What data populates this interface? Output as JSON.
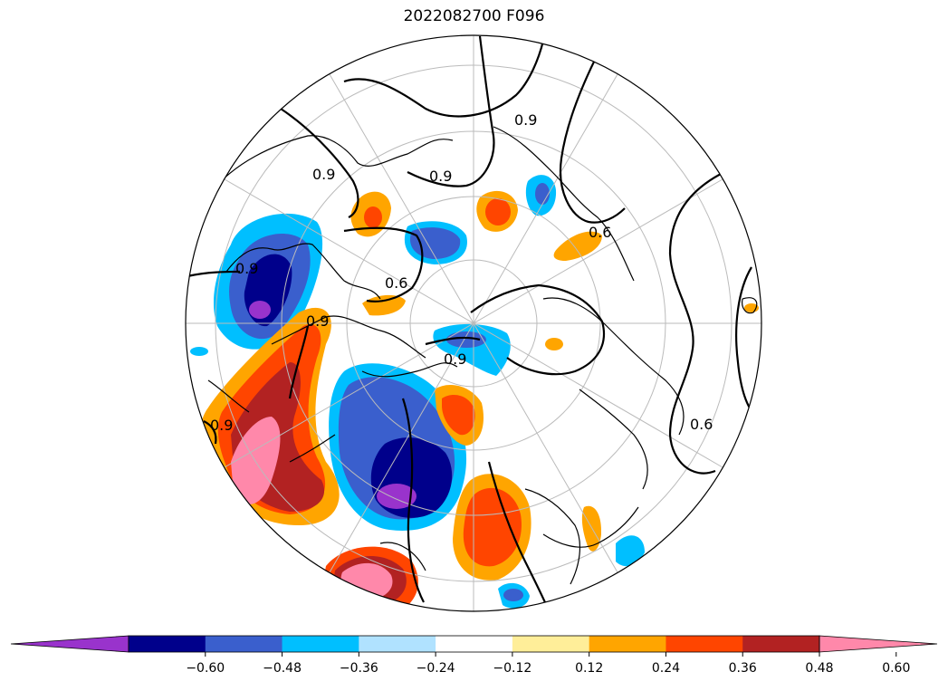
{
  "title": "2022082700 F096",
  "contour_labels": [
    "0.9",
    "0.9",
    "0.6",
    "0.9",
    "0.9",
    "0.6",
    "0.6",
    "0.9",
    "0.9",
    "0.9"
  ],
  "colorbar": {
    "extend": "both",
    "ticks": [
      "−0.60",
      "−0.48",
      "−0.36",
      "−0.24",
      "−0.12",
      "0.12",
      "0.24",
      "0.36",
      "0.48",
      "0.60"
    ],
    "colors": [
      "#9933cc",
      "#00008b",
      "#3a5fcd",
      "#00bfff",
      "#b0e2ff",
      "#ffffff",
      "#ffee99",
      "#ffa500",
      "#ff4500",
      "#b22222",
      "#ff88aa"
    ]
  },
  "legend_colors": {
    "neg_extreme": "#9933cc",
    "neg_strong": "#00008b",
    "neg_mid": "#3a5fcd",
    "neg_weak": "#00bfff",
    "neg_faint": "#b0e2ff",
    "pos_faint": "#ffee99",
    "pos_weak": "#ffa500",
    "pos_mid": "#ff4500",
    "pos_strong": "#b22222",
    "pos_extreme": "#ff88aa"
  }
}
